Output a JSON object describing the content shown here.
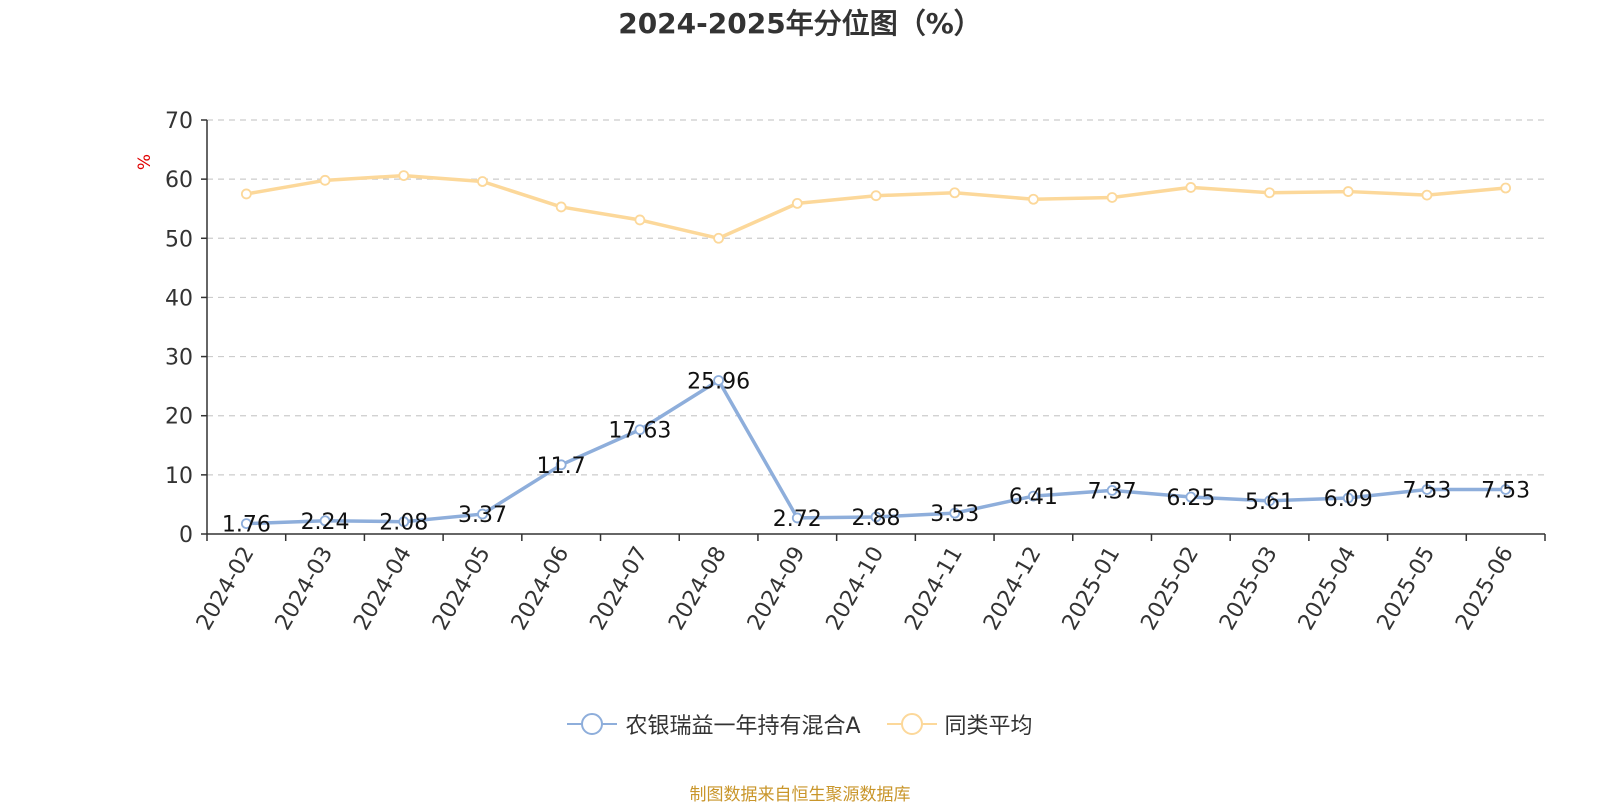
{
  "chart_data": {
    "type": "line",
    "title": "2024-2025年分位图（%）",
    "ylabel": "%",
    "xlabel": "",
    "ylim": [
      0,
      70
    ],
    "yticks": [
      0,
      10,
      20,
      30,
      40,
      50,
      60,
      70
    ],
    "grid": true,
    "legend_position": "bottom",
    "categories": [
      "2024-02",
      "2024-03",
      "2024-04",
      "2024-05",
      "2024-06",
      "2024-07",
      "2024-08",
      "2024-09",
      "2024-10",
      "2024-11",
      "2024-12",
      "2025-01",
      "2025-02",
      "2025-03",
      "2025-04",
      "2025-05",
      "2025-06"
    ],
    "series": [
      {
        "name": "农银瑞益一年持有混合A",
        "color": "#8eaedb",
        "values": [
          1.76,
          2.24,
          2.08,
          3.37,
          11.7,
          17.63,
          25.96,
          2.72,
          2.88,
          3.53,
          6.41,
          7.37,
          6.25,
          5.61,
          6.09,
          7.53,
          7.53
        ],
        "labels": [
          "1.76",
          "2.24",
          "2.08",
          "3.37",
          "11.7",
          "17.63",
          "25.96",
          "2.72",
          "2.88",
          "3.53",
          "6.41",
          "7.37",
          "6.25",
          "5.61",
          "6.09",
          "7.53",
          "7.53"
        ]
      },
      {
        "name": "同类平均",
        "color": "#fcd89a",
        "values": [
          57.5,
          59.8,
          60.6,
          59.6,
          55.3,
          53.1,
          50.0,
          55.9,
          57.2,
          57.7,
          56.6,
          56.9,
          58.6,
          57.7,
          57.9,
          57.3,
          58.5
        ]
      }
    ]
  },
  "footer": {
    "source": "制图数据来自恒生聚源数据库"
  }
}
